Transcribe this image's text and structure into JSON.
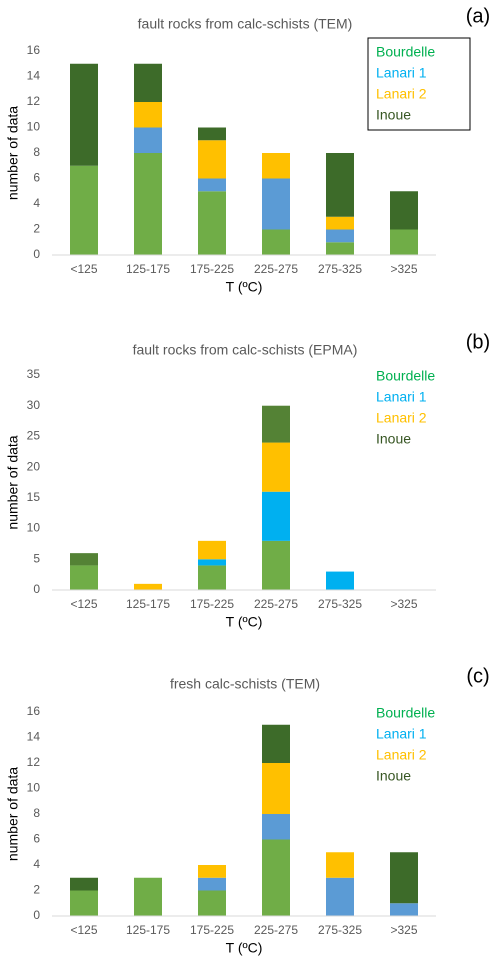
{
  "chart_data": [
    {
      "type": "bar",
      "stacked": true,
      "panel_label": "(a)",
      "title": "fault rocks from calc-schists (TEM)",
      "x_label": "T (ºC)",
      "y_label": "number of data",
      "categories": [
        "<125",
        "125-175",
        "175-225",
        "225-275",
        "275-325",
        ">325"
      ],
      "series": [
        {
          "name": "Bourdelle",
          "color": "#70ad47",
          "label_color": "#00b050",
          "values": [
            7,
            8,
            5,
            2,
            1,
            2
          ]
        },
        {
          "name": "Lanari 1",
          "color": "#5b9bd5",
          "label_color": "#00b0f0",
          "values": [
            0,
            2,
            1,
            4,
            1,
            0
          ]
        },
        {
          "name": "Lanari 2",
          "color": "#ffc000",
          "label_color": "#ffc000",
          "values": [
            0,
            2,
            3,
            2,
            1,
            0
          ]
        },
        {
          "name": "Inoue",
          "color": "#3d6b29",
          "label_color": "#375623",
          "values": [
            8,
            3,
            1,
            0,
            5,
            3
          ]
        }
      ],
      "ylim": [
        0,
        16
      ],
      "yticks": [
        0,
        2,
        4,
        6,
        8,
        10,
        12,
        14,
        16
      ],
      "legend": "upper right",
      "legend_border": true
    },
    {
      "type": "bar",
      "stacked": true,
      "panel_label": "(b)",
      "title": "fault rocks from calc-schists (EPMA)",
      "x_label": "T (ºC)",
      "y_label": "number of data",
      "categories": [
        "<125",
        "125-175",
        "175-225",
        "225-275",
        "275-325",
        ">325"
      ],
      "series": [
        {
          "name": "Bourdelle",
          "color": "#70ad47",
          "label_color": "#00b050",
          "values": [
            4,
            0,
            4,
            8,
            0,
            0
          ]
        },
        {
          "name": "Lanari 1",
          "color": "#00b0f0",
          "label_color": "#00b0f0",
          "values": [
            0,
            0,
            1,
            8,
            3,
            0
          ]
        },
        {
          "name": "Lanari 2",
          "color": "#ffc000",
          "label_color": "#ffc000",
          "values": [
            0,
            1,
            3,
            8,
            0,
            0
          ]
        },
        {
          "name": "Inoue",
          "color": "#548235",
          "label_color": "#375623",
          "values": [
            2,
            0,
            0,
            6,
            0,
            0
          ]
        }
      ],
      "ylim": [
        0,
        35
      ],
      "yticks": [
        0,
        5,
        10,
        15,
        20,
        25,
        30,
        35
      ],
      "legend": "upper right",
      "legend_border": false
    },
    {
      "type": "bar",
      "stacked": true,
      "panel_label": "(c)",
      "title": "fresh calc-schists (TEM)",
      "x_label": "T (ºC)",
      "y_label": "number of data",
      "categories": [
        "<125",
        "125-175",
        "175-225",
        "225-275",
        "275-325",
        ">325"
      ],
      "series": [
        {
          "name": "Bourdelle",
          "color": "#70ad47",
          "label_color": "#00b050",
          "values": [
            2,
            3,
            2,
            6,
            0,
            0
          ]
        },
        {
          "name": "Lanari 1",
          "color": "#5b9bd5",
          "label_color": "#00b0f0",
          "values": [
            0,
            0,
            1,
            2,
            3,
            1
          ]
        },
        {
          "name": "Lanari 2",
          "color": "#ffc000",
          "label_color": "#ffc000",
          "values": [
            0,
            0,
            1,
            4,
            2,
            0
          ]
        },
        {
          "name": "Inoue",
          "color": "#3d6b29",
          "label_color": "#375623",
          "values": [
            1,
            0,
            0,
            3,
            0,
            4
          ]
        }
      ],
      "ylim": [
        0,
        16
      ],
      "yticks": [
        0,
        2,
        4,
        6,
        8,
        10,
        12,
        14,
        16
      ],
      "legend": "upper right",
      "legend_border": false
    }
  ]
}
